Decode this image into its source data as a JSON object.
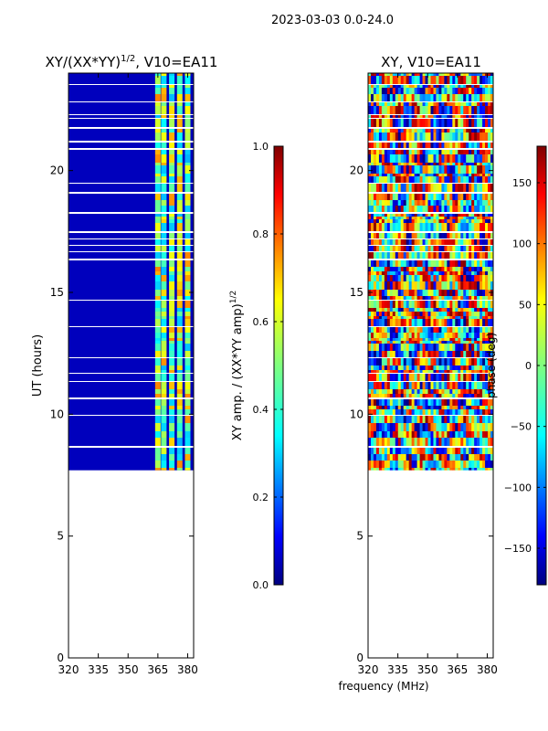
{
  "suptitle": "2023-03-03 0.0-24.0",
  "xlabel_shared": "frequency (MHz)",
  "colors": {
    "masked_bg": "#ffffff",
    "jet": [
      "#00007f",
      "#0000ff",
      "#007fff",
      "#00ffff",
      "#7fff7f",
      "#ffff00",
      "#ff7f00",
      "#ff0000",
      "#7f0000"
    ]
  },
  "chart_data": [
    {
      "type": "heatmap",
      "title": "XY/(XX*YY)",
      "title_exp": "1/2",
      "title_suffix": ", V10=EA11",
      "xlabel": "",
      "ylabel": "UT (hours)",
      "xlim": [
        320,
        383
      ],
      "ylim": [
        0,
        24
      ],
      "xticks": [
        320,
        335,
        350,
        365,
        380
      ],
      "yticks": [
        0,
        5,
        10,
        15,
        20
      ],
      "data_extent_hours": [
        7.7,
        24.0
      ],
      "background_fraction_low": 0.06,
      "bright_channels_mhz": [
        365,
        368,
        372,
        376,
        380
      ],
      "colorbar": {
        "label": "XY amp. / (XX*YY amp)",
        "label_exp": "1/2",
        "range": [
          0.0,
          1.0
        ],
        "ticks": [
          0.0,
          0.2,
          0.4,
          0.6,
          0.8,
          1.0
        ],
        "ticklabels": [
          "0.0",
          "0.2",
          "0.4",
          "0.6",
          "0.8",
          "1.0"
        ]
      }
    },
    {
      "type": "heatmap",
      "title": "XY, V10=EA11",
      "xlabel": "frequency (MHz)",
      "ylabel": "",
      "xlim": [
        320,
        383
      ],
      "ylim": [
        0,
        24
      ],
      "xticks": [
        320,
        335,
        350,
        365,
        380
      ],
      "yticks": [
        0,
        5,
        10,
        15,
        20
      ],
      "data_extent_hours": [
        7.7,
        24.0
      ],
      "value_range_deg": [
        -180,
        180
      ],
      "colorbar": {
        "label": "phase (deg)",
        "range": [
          -180,
          180
        ],
        "ticks": [
          -150,
          -100,
          -50,
          0,
          50,
          100,
          150
        ],
        "ticklabels": [
          "−150",
          "−100",
          "−50",
          "0",
          "50",
          "100",
          "150"
        ]
      }
    }
  ]
}
